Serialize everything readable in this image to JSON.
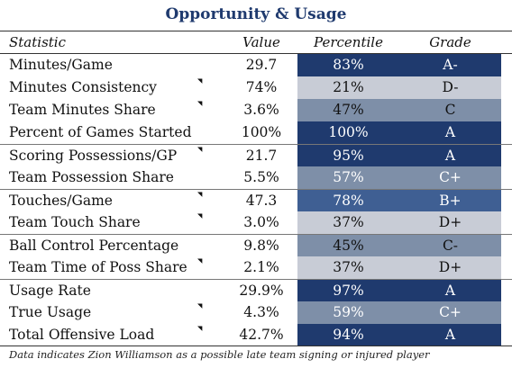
{
  "title": "Opportunity & Usage",
  "headers": {
    "statistic": "Statistic",
    "value": "Value",
    "percentile": "Percentile",
    "grade": "Grade"
  },
  "rows": [
    {
      "statistic": "Minutes/Game",
      "value": "29.7",
      "percentile": "83%",
      "grade": "A-",
      "fill": "#1f3a6e",
      "text": "#ffffff"
    },
    {
      "statistic": "Minutes Consistency",
      "value": "74%",
      "percentile": "21%",
      "grade": "D-",
      "fill": "#c8ccd6",
      "text": "#111111"
    },
    {
      "statistic": "Team Minutes Share",
      "value": "3.6%",
      "percentile": "47%",
      "grade": "C",
      "fill": "#7e8fa8",
      "text": "#111111"
    },
    {
      "statistic": "Percent of Games Started",
      "value": "100%",
      "percentile": "100%",
      "grade": "A",
      "fill": "#1f3a6e",
      "text": "#ffffff"
    },
    {
      "statistic": "Scoring Possessions/GP",
      "value": "21.7",
      "percentile": "95%",
      "grade": "A",
      "fill": "#1f3a6e",
      "text": "#ffffff"
    },
    {
      "statistic": "Team Possession Share",
      "value": "5.5%",
      "percentile": "57%",
      "grade": "C+",
      "fill": "#7e8fa8",
      "text": "#ffffff"
    },
    {
      "statistic": "Touches/Game",
      "value": "47.3",
      "percentile": "78%",
      "grade": "B+",
      "fill": "#3f5f93",
      "text": "#ffffff"
    },
    {
      "statistic": "Team Touch Share",
      "value": "3.0%",
      "percentile": "37%",
      "grade": "D+",
      "fill": "#c8ccd6",
      "text": "#111111"
    },
    {
      "statistic": "Ball Control Percentage",
      "value": "9.8%",
      "percentile": "45%",
      "grade": "C-",
      "fill": "#7e8fa8",
      "text": "#111111"
    },
    {
      "statistic": "Team Time of Poss Share",
      "value": "2.1%",
      "percentile": "37%",
      "grade": "D+",
      "fill": "#c8ccd6",
      "text": "#111111"
    },
    {
      "statistic": "Usage Rate",
      "value": "29.9%",
      "percentile": "97%",
      "grade": "A",
      "fill": "#1f3a6e",
      "text": "#ffffff"
    },
    {
      "statistic": "True Usage",
      "value": "4.3%",
      "percentile": "59%",
      "grade": "C+",
      "fill": "#7e8fa8",
      "text": "#ffffff"
    },
    {
      "statistic": "Total Offensive Load",
      "value": "42.7%",
      "percentile": "94%",
      "grade": "A",
      "fill": "#1f3a6e",
      "text": "#ffffff"
    }
  ],
  "footnote": "Data indicates Zion Williamson as a possible late team signing or injured player"
}
